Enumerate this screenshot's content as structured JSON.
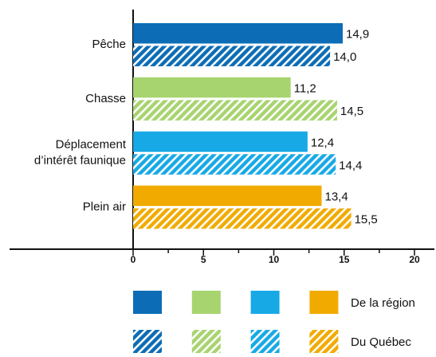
{
  "chart_data": {
    "type": "hbar",
    "categories": [
      [
        "Pêche"
      ],
      [
        "Chasse"
      ],
      [
        "Déplacement",
        "d’intérêt faunique"
      ],
      [
        "Plein air"
      ]
    ],
    "colors": [
      "#0c6db6",
      "#a7d46f",
      "#17a9e6",
      "#f1ab00"
    ],
    "series": [
      {
        "name": "De la région",
        "style": "solid",
        "values": [
          14.9,
          11.2,
          12.4,
          13.4
        ],
        "value_labels": [
          "14,9",
          "11,2",
          "12,4",
          "13,4"
        ]
      },
      {
        "name": "Du Québec",
        "style": "hatch",
        "values": [
          14.0,
          14.5,
          14.4,
          15.5
        ],
        "value_labels": [
          "14,0",
          "14,5",
          "14,4",
          "15,5"
        ]
      }
    ],
    "xlim": [
      0,
      20
    ],
    "xticks": [
      0,
      5,
      10,
      15,
      20
    ],
    "minor_xticks": [
      2.5,
      7.5,
      12.5,
      17.5
    ]
  }
}
